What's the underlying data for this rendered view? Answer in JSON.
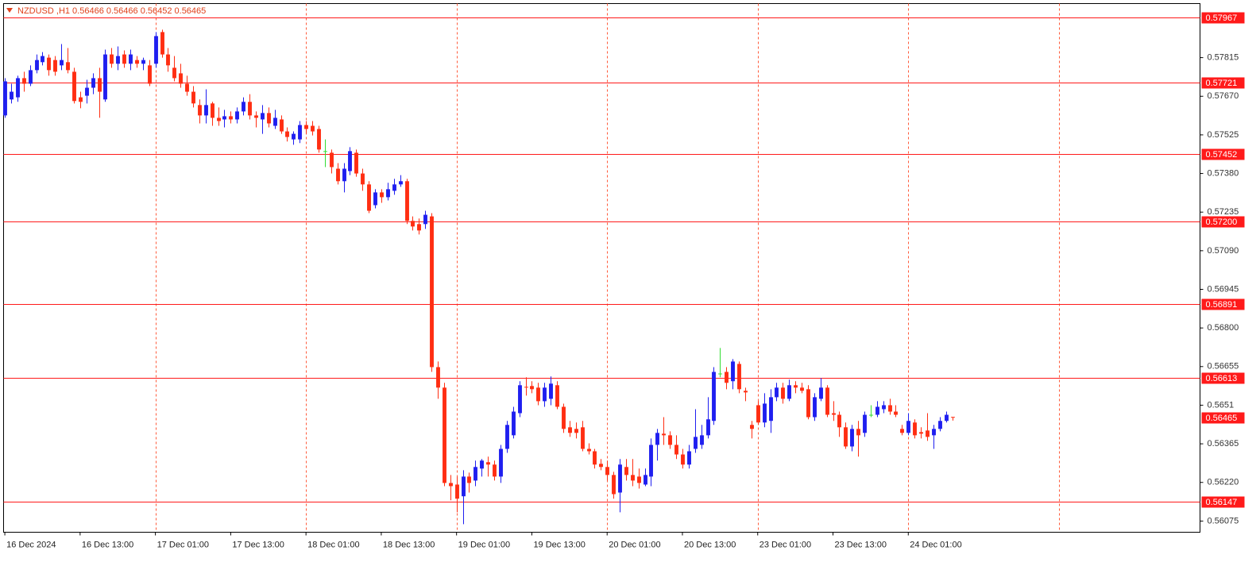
{
  "chart_data": {
    "type": "candlestick",
    "title": "NZDUSD ,H1  0.56466 0.56466 0.56452 0.56465",
    "candles": [
      [
        0.57598,
        0.57738,
        0.57589,
        0.57726
      ],
      [
        0.57658,
        0.57717,
        0.57643,
        0.57687
      ],
      [
        0.57666,
        0.57747,
        0.57649,
        0.57738
      ],
      [
        0.57738,
        0.57762,
        0.57687,
        0.57717
      ],
      [
        0.57717,
        0.57786,
        0.57708,
        0.57768
      ],
      [
        0.57768,
        0.57827,
        0.57756,
        0.57806
      ],
      [
        0.57798,
        0.57836,
        0.57786,
        0.57821
      ],
      [
        0.57815,
        0.57827,
        0.57747,
        0.57768
      ],
      [
        0.57806,
        0.57821,
        0.57747,
        0.57762
      ],
      [
        0.57786,
        0.57866,
        0.57768,
        0.57806
      ],
      [
        0.57798,
        0.57851,
        0.57756,
        0.57768
      ],
      [
        0.57762,
        0.57777,
        0.57643,
        0.57652
      ],
      [
        0.57666,
        0.57687,
        0.57625,
        0.57649
      ],
      [
        0.57672,
        0.57732,
        0.57643,
        0.57702
      ],
      [
        0.57702,
        0.57756,
        0.57678,
        0.57738
      ],
      [
        0.57738,
        0.57777,
        0.57589,
        0.57687
      ],
      [
        0.57658,
        0.57845,
        0.57649,
        0.57827
      ],
      [
        0.57827,
        0.57851,
        0.57777,
        0.57792
      ],
      [
        0.57792,
        0.57857,
        0.57768,
        0.57821
      ],
      [
        0.57827,
        0.57842,
        0.57777,
        0.57792
      ],
      [
        0.57792,
        0.57845,
        0.57768,
        0.57827
      ],
      [
        0.57806,
        0.57821,
        0.57777,
        0.57792
      ],
      [
        0.57792,
        0.57815,
        0.57768,
        0.57806
      ],
      [
        0.57786,
        0.57806,
        0.57708,
        0.57717
      ],
      [
        0.57792,
        0.57911,
        0.57777,
        0.57896
      ],
      [
        0.57911,
        0.5792,
        0.57815,
        0.57827
      ],
      [
        0.57827,
        0.57851,
        0.57762,
        0.57786
      ],
      [
        0.57777,
        0.57821,
        0.57726,
        0.57738
      ],
      [
        0.57756,
        0.57792,
        0.57702,
        0.57717
      ],
      [
        0.57717,
        0.57747,
        0.57672,
        0.57687
      ],
      [
        0.57687,
        0.57708,
        0.57628,
        0.57643
      ],
      [
        0.57637,
        0.57658,
        0.57568,
        0.57598
      ],
      [
        0.57598,
        0.57696,
        0.57568,
        0.57637
      ],
      [
        0.57643,
        0.57649,
        0.57559,
        0.57589
      ],
      [
        0.57589,
        0.57628,
        0.57559,
        0.57577
      ],
      [
        0.57583,
        0.57619,
        0.57553,
        0.57595
      ],
      [
        0.57595,
        0.57613,
        0.57568,
        0.57583
      ],
      [
        0.57583,
        0.57628,
        0.57568,
        0.57613
      ],
      [
        0.57613,
        0.57666,
        0.57598,
        0.57649
      ],
      [
        0.57649,
        0.57678,
        0.57583,
        0.57598
      ],
      [
        0.57598,
        0.57613,
        0.57553,
        0.57589
      ],
      [
        0.57583,
        0.57637,
        0.57529,
        0.57607
      ],
      [
        0.57607,
        0.57628,
        0.57553,
        0.57568
      ],
      [
        0.57559,
        0.57619,
        0.57547,
        0.57589
      ],
      [
        0.57583,
        0.57598,
        0.57529,
        0.57538
      ],
      [
        0.57538,
        0.57553,
        0.575,
        0.57517
      ],
      [
        0.57508,
        0.57538,
        0.57488,
        0.57529
      ],
      [
        0.57508,
        0.57577,
        0.57494,
        0.57562
      ],
      [
        0.57562,
        0.57577,
        0.57529,
        0.57547
      ],
      [
        0.57559,
        0.57577,
        0.57523,
        0.57538
      ],
      [
        0.57547,
        0.57559,
        0.57458,
        0.5747
      ],
      [
        0.57464,
        0.57508,
        0.57404,
        0.57464
      ],
      [
        0.57458,
        0.5747,
        0.5738,
        0.57404
      ],
      [
        0.57398,
        0.57419,
        0.57339,
        0.57351
      ],
      [
        0.57351,
        0.57419,
        0.57309,
        0.57398
      ],
      [
        0.57389,
        0.57479,
        0.57374,
        0.57464
      ],
      [
        0.57458,
        0.5747,
        0.57368,
        0.5738
      ],
      [
        0.5738,
        0.57398,
        0.57315,
        0.57339
      ],
      [
        0.57339,
        0.57351,
        0.57231,
        0.5724
      ],
      [
        0.57261,
        0.57321,
        0.57249,
        0.57309
      ],
      [
        0.57309,
        0.57321,
        0.5727,
        0.57291
      ],
      [
        0.57291,
        0.57345,
        0.57279,
        0.57321
      ],
      [
        0.57315,
        0.5736,
        0.573,
        0.57339
      ],
      [
        0.57339,
        0.57374,
        0.5733,
        0.57351
      ],
      [
        0.57351,
        0.5736,
        0.5719,
        0.57202
      ],
      [
        0.57202,
        0.57219,
        0.57166,
        0.57181
      ],
      [
        0.5719,
        0.57211,
        0.57151,
        0.57166
      ],
      [
        0.5719,
        0.5724,
        0.57172,
        0.57225
      ],
      [
        0.57219,
        0.57231,
        0.56635,
        0.56653
      ],
      [
        0.56653,
        0.56674,
        0.56534,
        0.56576
      ],
      [
        0.56576,
        0.56594,
        0.56206,
        0.56218
      ],
      [
        0.56218,
        0.56248,
        0.56153,
        0.56206
      ],
      [
        0.56212,
        0.56242,
        0.56108,
        0.56159
      ],
      [
        0.56168,
        0.56266,
        0.56063,
        0.56242
      ],
      [
        0.56242,
        0.56257,
        0.56182,
        0.56218
      ],
      [
        0.56227,
        0.56302,
        0.56206,
        0.56278
      ],
      [
        0.56272,
        0.56308,
        0.56242,
        0.56302
      ],
      [
        0.56296,
        0.56317,
        0.56242,
        0.56287
      ],
      [
        0.56287,
        0.56302,
        0.56227,
        0.56242
      ],
      [
        0.56242,
        0.56361,
        0.56218,
        0.56346
      ],
      [
        0.56346,
        0.56451,
        0.56331,
        0.56436
      ],
      [
        0.56397,
        0.56504,
        0.56385,
        0.56486
      ],
      [
        0.5648,
        0.566,
        0.56465,
        0.56585
      ],
      [
        0.56579,
        0.56615,
        0.56546,
        0.56576
      ],
      [
        0.56582,
        0.566,
        0.56555,
        0.5657
      ],
      [
        0.56576,
        0.56594,
        0.5651,
        0.56525
      ],
      [
        0.56525,
        0.56594,
        0.56504,
        0.56576
      ],
      [
        0.56534,
        0.56618,
        0.5651,
        0.56591
      ],
      [
        0.56585,
        0.566,
        0.56495,
        0.56504
      ],
      [
        0.56504,
        0.56516,
        0.56406,
        0.56421
      ],
      [
        0.56427,
        0.56451,
        0.56391,
        0.56406
      ],
      [
        0.56421,
        0.56445,
        0.56385,
        0.56406
      ],
      [
        0.56427,
        0.56451,
        0.56337,
        0.56346
      ],
      [
        0.56346,
        0.56367,
        0.56325,
        0.56337
      ],
      [
        0.56337,
        0.56346,
        0.56272,
        0.56287
      ],
      [
        0.5629,
        0.56308,
        0.56266,
        0.56278
      ],
      [
        0.56278,
        0.56302,
        0.56227,
        0.56248
      ],
      [
        0.56248,
        0.5626,
        0.56159,
        0.56176
      ],
      [
        0.56182,
        0.56308,
        0.56108,
        0.56287
      ],
      [
        0.56278,
        0.56308,
        0.56227,
        0.56248
      ],
      [
        0.56248,
        0.56308,
        0.56206,
        0.56227
      ],
      [
        0.56242,
        0.56272,
        0.56197,
        0.56218
      ],
      [
        0.56212,
        0.56272,
        0.56206,
        0.56248
      ],
      [
        0.56242,
        0.56385,
        0.56206,
        0.56361
      ],
      [
        0.56361,
        0.56421,
        0.56302,
        0.56406
      ],
      [
        0.56403,
        0.56465,
        0.56361,
        0.56397
      ],
      [
        0.56397,
        0.56412,
        0.56346,
        0.56361
      ],
      [
        0.56361,
        0.56397,
        0.56308,
        0.56325
      ],
      [
        0.56325,
        0.56346,
        0.56272,
        0.56287
      ],
      [
        0.56287,
        0.56361,
        0.56272,
        0.56337
      ],
      [
        0.56346,
        0.56495,
        0.56331,
        0.56391
      ],
      [
        0.56361,
        0.56436,
        0.56346,
        0.56397
      ],
      [
        0.56397,
        0.5654,
        0.56385,
        0.56457
      ],
      [
        0.56451,
        0.56653,
        0.56436,
        0.56635
      ],
      [
        0.56629,
        0.56725,
        0.56615,
        0.56629
      ],
      [
        0.56635,
        0.56653,
        0.5657,
        0.56594
      ],
      [
        0.566,
        0.56683,
        0.5657,
        0.56674
      ],
      [
        0.56665,
        0.56674,
        0.56555,
        0.5657
      ],
      [
        0.56564,
        0.56576,
        0.56525,
        0.56558
      ],
      [
        0.56436,
        0.56451,
        0.56385,
        0.56421
      ],
      [
        0.5651,
        0.56525,
        0.56436,
        0.56445
      ],
      [
        0.56445,
        0.56555,
        0.56427,
        0.56516
      ],
      [
        0.56451,
        0.5657,
        0.56406,
        0.5654
      ],
      [
        0.5654,
        0.56594,
        0.56525,
        0.56576
      ],
      [
        0.56576,
        0.56594,
        0.56516,
        0.56534
      ],
      [
        0.56534,
        0.56606,
        0.56525,
        0.56585
      ],
      [
        0.56585,
        0.566,
        0.56555,
        0.56576
      ],
      [
        0.56576,
        0.56594,
        0.56555,
        0.56564
      ],
      [
        0.5657,
        0.56585,
        0.56457,
        0.56465
      ],
      [
        0.56465,
        0.56555,
        0.56451,
        0.5654
      ],
      [
        0.56534,
        0.56612,
        0.56525,
        0.56576
      ],
      [
        0.56576,
        0.56585,
        0.56465,
        0.56474
      ],
      [
        0.5648,
        0.56525,
        0.56451,
        0.56474
      ],
      [
        0.56474,
        0.56486,
        0.56391,
        0.56427
      ],
      [
        0.56427,
        0.56445,
        0.56346,
        0.56355
      ],
      [
        0.56355,
        0.56436,
        0.56337,
        0.56421
      ],
      [
        0.56421,
        0.56451,
        0.56317,
        0.56397
      ],
      [
        0.56406,
        0.56486,
        0.56391,
        0.56474
      ],
      [
        0.56474,
        0.5651,
        0.56465,
        0.56474
      ],
      [
        0.56474,
        0.56525,
        0.56465,
        0.56504
      ],
      [
        0.56495,
        0.56525,
        0.5648,
        0.5651
      ],
      [
        0.5651,
        0.56534,
        0.56474,
        0.56486
      ],
      [
        0.56486,
        0.5651,
        0.56465,
        0.56474
      ],
      [
        0.56421,
        0.56436,
        0.56397,
        0.56406
      ],
      [
        0.56406,
        0.5648,
        0.56397,
        0.56451
      ],
      [
        0.56445,
        0.56457,
        0.56385,
        0.56397
      ],
      [
        0.56409,
        0.56427,
        0.56385,
        0.56403
      ],
      [
        0.56415,
        0.5648,
        0.56376,
        0.56391
      ],
      [
        0.56397,
        0.56436,
        0.56346,
        0.56421
      ],
      [
        0.56421,
        0.56465,
        0.56412,
        0.56451
      ],
      [
        0.56451,
        0.56486,
        0.56445,
        0.56474
      ],
      [
        0.56466,
        0.56466,
        0.56452,
        0.56465
      ]
    ],
    "xlim": [
      -0.2,
      190.5
    ],
    "xticks": [
      {
        "value": 0,
        "label": "16 Dec 2024"
      },
      {
        "value": 12,
        "label": "16 Dec 13:00"
      },
      {
        "value": 24,
        "label": "17 Dec 01:00"
      },
      {
        "value": 36,
        "label": "17 Dec 13:00"
      },
      {
        "value": 48,
        "label": "18 Dec 01:00"
      },
      {
        "value": 60,
        "label": "18 Dec 13:00"
      },
      {
        "value": 72,
        "label": "19 Dec 01:00"
      },
      {
        "value": 84,
        "label": "19 Dec 13:00"
      },
      {
        "value": 96,
        "label": "20 Dec 01:00"
      },
      {
        "value": 108,
        "label": "20 Dec 13:00"
      },
      {
        "value": 120,
        "label": "23 Dec 01:00"
      },
      {
        "value": 132,
        "label": "23 Dec 13:00"
      },
      {
        "value": 144,
        "label": "24 Dec 01:00"
      }
    ],
    "xgrid": [
      24,
      48,
      72,
      96,
      120,
      144,
      168
    ],
    "ylim": [
      0.56033,
      0.58018
    ],
    "yticks": [
      0.57815,
      {
        "value": 0.5767,
        "label": "0.57670"
      },
      0.57525,
      {
        "value": 0.5738,
        "label": "0.57380"
      },
      0.57235,
      {
        "value": 0.5709,
        "label": "0.57090"
      },
      0.56945,
      {
        "value": 0.568,
        "label": "0.56800"
      },
      0.56655,
      0.5651,
      0.56365,
      {
        "value": 0.5622,
        "label": "0.56220"
      },
      0.56075
    ],
    "levels": [
      0.57967,
      0.57721,
      0.57452,
      {
        "value": 0.572,
        "label": "0.57200"
      },
      0.56891,
      0.56613,
      0.56147
    ],
    "last_price": 0.56465,
    "colors": {
      "up": "#1f1ff0",
      "down": "#ff2e12",
      "doji": "#33dd33",
      "level": "#ff1a1a",
      "grid": "#ff5a3a",
      "title": "#e0401a"
    }
  }
}
